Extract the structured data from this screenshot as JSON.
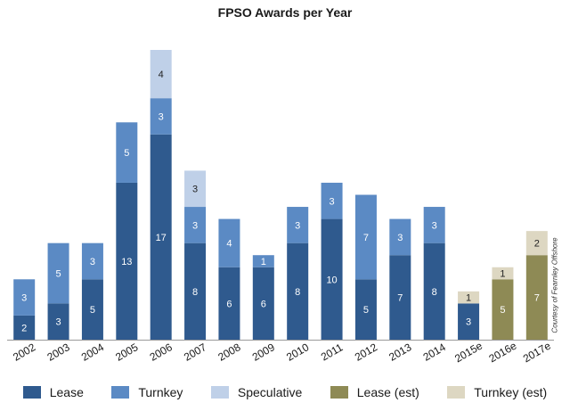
{
  "chart_data": {
    "type": "bar",
    "stacked": true,
    "title": "FPSO Awards per Year",
    "categories": [
      "2002",
      "2003",
      "2004",
      "2005",
      "2006",
      "2007",
      "2008",
      "2009",
      "2010",
      "2011",
      "2012",
      "2013",
      "2014",
      "2015e",
      "2016e",
      "2017e"
    ],
    "series": [
      {
        "name": "Lease",
        "color": "#2f5a8e",
        "values": [
          2,
          3,
          5,
          13,
          17,
          8,
          6,
          6,
          8,
          10,
          5,
          7,
          8,
          3,
          0,
          0
        ]
      },
      {
        "name": "Turnkey",
        "color": "#5b8ac4",
        "values": [
          3,
          5,
          3,
          5,
          3,
          3,
          4,
          1,
          3,
          3,
          7,
          3,
          3,
          0,
          0,
          0
        ]
      },
      {
        "name": "Speculative",
        "color": "#bfd0e8",
        "values": [
          0,
          0,
          0,
          0,
          4,
          3,
          0,
          0,
          0,
          0,
          0,
          0,
          0,
          0,
          0,
          0
        ]
      },
      {
        "name": "Lease (est)",
        "color": "#8e8a55",
        "values": [
          0,
          0,
          0,
          0,
          0,
          0,
          0,
          0,
          0,
          0,
          0,
          0,
          0,
          0,
          5,
          7
        ]
      },
      {
        "name": "Turnkey (est)",
        "color": "#ddd7c2",
        "values": [
          0,
          0,
          0,
          0,
          0,
          0,
          0,
          0,
          0,
          0,
          0,
          0,
          0,
          1,
          1,
          2
        ]
      }
    ],
    "ylim": [
      0,
      24
    ],
    "grid": false,
    "legend_position": "bottom",
    "credit": "Courtesy of Fearnley Offshore"
  }
}
